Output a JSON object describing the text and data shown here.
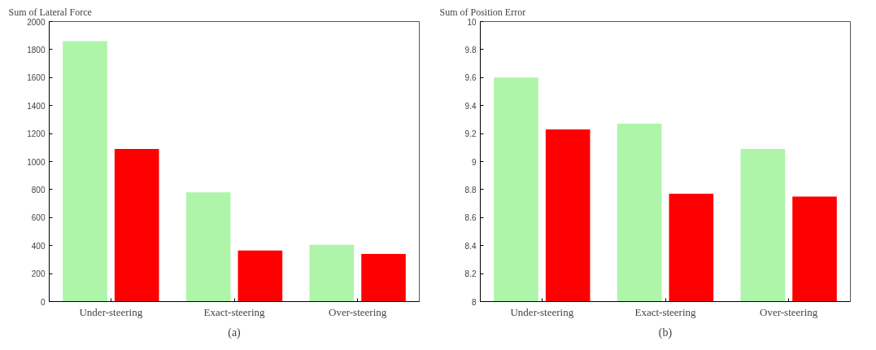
{
  "chart_data": [
    {
      "type": "bar",
      "title": "Sum of Lateral Force",
      "categories": [
        "Under-steering",
        "Exact-steering",
        "Over-steering"
      ],
      "series": [
        {
          "color": "#aef5aa",
          "values": [
            1860,
            780,
            405
          ]
        },
        {
          "color": "#ff0000",
          "values": [
            1090,
            365,
            340
          ]
        }
      ],
      "ylim": [
        0,
        2000
      ],
      "yticks": [
        0,
        200,
        400,
        600,
        800,
        1000,
        1200,
        1400,
        1600,
        1800,
        2000
      ],
      "grid": false,
      "annotations": [
        "(a)"
      ]
    },
    {
      "type": "bar",
      "title": "Sum of Position Error",
      "categories": [
        "Under-steering",
        "Exact-steering",
        "Over-steering"
      ],
      "series": [
        {
          "color": "#aef5aa",
          "values": [
            9.6,
            9.27,
            9.09
          ]
        },
        {
          "color": "#ff0000",
          "values": [
            9.23,
            8.77,
            8.75
          ]
        }
      ],
      "ylim": [
        8,
        10
      ],
      "yticks": [
        8,
        8.2,
        8.4,
        8.6,
        8.8,
        9,
        9.2,
        9.4,
        9.6,
        9.8,
        10
      ],
      "grid": false,
      "annotations": [
        "(b)"
      ]
    }
  ]
}
